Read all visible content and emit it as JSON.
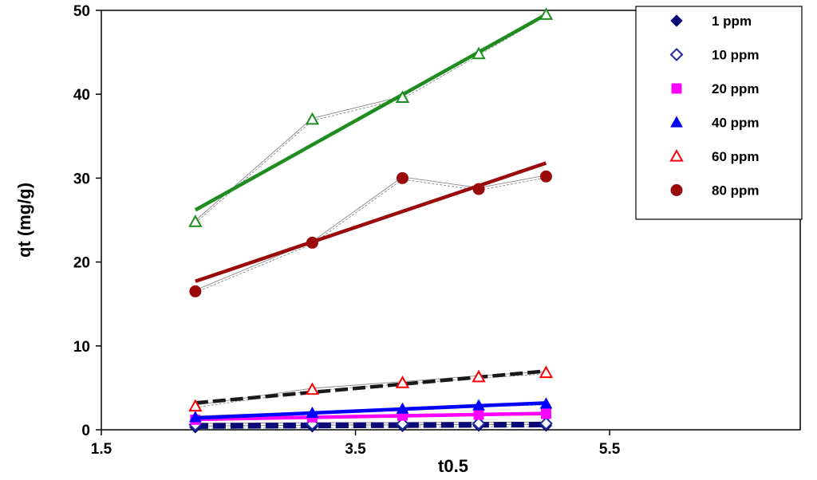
{
  "chart_data": {
    "type": "scatter",
    "xlabel": "t0.5",
    "ylabel": "qt (mg/g)",
    "xlim": [
      1.5,
      7.0
    ],
    "ylim": [
      0,
      50
    ],
    "xticks": [
      1.5,
      3.5,
      5.5
    ],
    "xtick_labels": [
      "1.5",
      "3.5",
      "5.5"
    ],
    "yticks": [
      0,
      10,
      20,
      30,
      40,
      50
    ],
    "ytick_labels": [
      "0",
      "10",
      "20",
      "30",
      "40",
      "50"
    ],
    "grid": false,
    "legend_position": "top-right",
    "x": [
      2.24,
      3.16,
      3.87,
      4.47,
      5.0
    ],
    "series": [
      {
        "name": "1 ppm",
        "marker": "diamond-filled",
        "color": "#0a0a78",
        "values": [
          0.3,
          0.4,
          0.45,
          0.5,
          0.5
        ],
        "trendline": [
          0.32,
          0.5
        ],
        "trend_color": "#0a0a78",
        "trend_style": "dashed"
      },
      {
        "name": "10 ppm",
        "marker": "diamond-open",
        "color": "#1c2a9c",
        "values": [
          0.6,
          0.7,
          0.7,
          0.75,
          0.75
        ],
        "trendline": [
          0.6,
          0.75
        ],
        "trend_color": "#0a0a78",
        "trend_style": "dashed"
      },
      {
        "name": "20 ppm",
        "marker": "square-filled",
        "color": "#ff00ff",
        "values": [
          1.2,
          1.5,
          1.7,
          1.8,
          1.9
        ],
        "trendline": [
          1.25,
          1.95
        ],
        "trend_color": "#ff00ff",
        "trend_style": "solid"
      },
      {
        "name": "40 ppm",
        "marker": "triangle-filled",
        "color": "#0000ff",
        "values": [
          1.5,
          2.0,
          2.5,
          2.9,
          3.1
        ],
        "trendline": [
          1.4,
          3.2
        ],
        "trend_color": "#0000ff",
        "trend_style": "solid"
      },
      {
        "name": "60 ppm",
        "marker": "triangle-open",
        "color": "#ff0000",
        "values": [
          2.8,
          4.8,
          5.6,
          6.3,
          6.8
        ],
        "trendline": [
          3.2,
          7.0
        ],
        "trend_color": "#1a1a1a",
        "trend_style": "dashed"
      },
      {
        "name": "80 ppm",
        "marker": "circle-filled",
        "color": "#9b0a0a",
        "values": [
          16.5,
          22.3,
          30.0,
          28.7,
          30.2
        ],
        "trendline": [
          17.7,
          31.8
        ],
        "trend_color": "#9b0a0a",
        "trend_style": "solid"
      },
      {
        "name": "",
        "marker": "triangle-open",
        "color": "#1e8c1e",
        "values": [
          24.8,
          37.0,
          39.6,
          44.8,
          49.5
        ],
        "trendline": [
          26.2,
          49.5
        ],
        "trend_color": "#1e8c1e",
        "trend_style": "solid"
      }
    ]
  }
}
